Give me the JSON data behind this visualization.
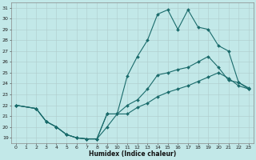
{
  "xlabel": "Humidex (Indice chaleur)",
  "bg_color": "#c2e8e8",
  "grid_color": "#b0cccc",
  "line_color": "#1a6b6b",
  "xlim": [
    -0.5,
    23.5
  ],
  "ylim": [
    18.5,
    31.5
  ],
  "xticks": [
    0,
    1,
    2,
    3,
    4,
    5,
    6,
    7,
    8,
    9,
    10,
    11,
    12,
    13,
    14,
    15,
    16,
    17,
    18,
    19,
    20,
    21,
    22,
    23
  ],
  "yticks": [
    19,
    20,
    21,
    22,
    23,
    24,
    25,
    26,
    27,
    28,
    29,
    30,
    31
  ],
  "line_jagged": {
    "x": [
      0,
      2,
      3,
      4,
      5,
      6,
      7,
      8,
      9,
      10,
      11,
      12,
      13,
      14,
      15,
      16,
      17,
      18,
      19,
      20,
      21,
      22,
      23
    ],
    "y": [
      22,
      21.7,
      20.5,
      20.0,
      19.3,
      19.0,
      18.9,
      18.9,
      20.0,
      21.2,
      24.7,
      26.5,
      28.0,
      30.4,
      30.8,
      29.0,
      30.8,
      29.2,
      29.0,
      27.5,
      27.0,
      24.1,
      23.5
    ]
  },
  "line_middle": {
    "x": [
      0,
      2,
      3,
      4,
      5,
      6,
      7,
      8,
      9,
      10,
      11,
      12,
      13,
      14,
      15,
      16,
      17,
      18,
      19,
      20,
      21,
      22,
      23
    ],
    "y": [
      22,
      21.7,
      20.5,
      20.0,
      19.3,
      19.0,
      18.9,
      18.9,
      21.2,
      21.2,
      22.0,
      22.5,
      23.5,
      24.8,
      25.0,
      25.3,
      25.5,
      26.0,
      26.5,
      25.5,
      24.3,
      24.1,
      23.6
    ]
  },
  "line_bottom": {
    "x": [
      0,
      2,
      3,
      4,
      5,
      6,
      7,
      8,
      9,
      10,
      11,
      12,
      13,
      14,
      15,
      16,
      17,
      18,
      19,
      20,
      21,
      22,
      23
    ],
    "y": [
      22,
      21.7,
      20.5,
      20.0,
      19.3,
      19.0,
      18.9,
      18.9,
      21.2,
      21.2,
      21.2,
      21.8,
      22.2,
      22.8,
      23.2,
      23.5,
      23.8,
      24.2,
      24.6,
      25.0,
      24.5,
      23.8,
      23.5
    ]
  }
}
